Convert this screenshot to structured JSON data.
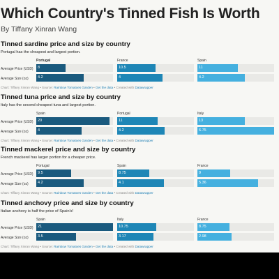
{
  "header": {
    "title": "Which Country's Tinned Fish Is Worth",
    "byline": "By Tiffany Xinran Wang"
  },
  "colors": {
    "dark": "#1a5a7e",
    "mid": "#1e86b6",
    "light": "#45b0df",
    "track": "#e9e9e6",
    "link": "#1f7fb4"
  },
  "footer": {
    "prefix": "Chart: Tiffany Xinran Wang • Source: ",
    "source": "Rainbow Tomatoes Garden",
    "sep1": " • ",
    "data": "Get the data",
    "mid": " • Created with ",
    "tool": "Datawrapper"
  },
  "sections": [
    {
      "title": "Tinned sardine price and size by country",
      "desc": "Portugal has the cheapest and largest portion.",
      "row1": "Average Price (USD)",
      "row2": "Average Size (oz)",
      "cols": [
        {
          "country": "Portugal",
          "price": "8",
          "price_v": 8,
          "size": "4.2",
          "size_v": 4.2,
          "bold": true
        },
        {
          "country": "France",
          "price": "10.5",
          "price_v": 10.5,
          "size": "4",
          "size_v": 4
        },
        {
          "country": "Spain",
          "price": "11",
          "price_v": 11,
          "size": "4.2",
          "size_v": 4.2
        }
      ]
    },
    {
      "title": "Tinned tuna price and size by country",
      "desc": "Italy has the second cheapest tuna and largest portion.",
      "row1": "Average Price (USD)",
      "row2": "Average Size (oz)",
      "cols": [
        {
          "country": "Spain",
          "price": "20",
          "price_v": 20,
          "size": "4",
          "size_v": 4
        },
        {
          "country": "Portugal",
          "price": "11",
          "price_v": 11,
          "size": "4.2",
          "size_v": 4.2
        },
        {
          "country": "Italy",
          "price": "13",
          "price_v": 13,
          "size": "6.75",
          "size_v": 6.75
        }
      ]
    },
    {
      "title": "Tinned mackerel price and size by country",
      "desc": "French mackerel has larger portion for a cheaper price.",
      "row1": "Average Price (USD)",
      "row2": "Average Size (oz)",
      "cols": [
        {
          "country": "Portugal",
          "price": "9.5",
          "price_v": 9.5,
          "size": "4.2",
          "size_v": 4.2
        },
        {
          "country": "Spain",
          "price": "8.75",
          "price_v": 8.75,
          "size": "4.1",
          "size_v": 4.1
        },
        {
          "country": "France",
          "price": "9",
          "price_v": 9,
          "size": "5.36",
          "size_v": 5.36
        }
      ]
    },
    {
      "title": "Tinned anchovy price and size by country",
      "desc": "Italian anchovy is half the price of Spain's!",
      "row1": "Average Price (USD)",
      "row2": "Average Size (oz)",
      "cols": [
        {
          "country": "Spain",
          "price": "21",
          "price_v": 21,
          "size": "3.5",
          "size_v": 3.5
        },
        {
          "country": "Italy",
          "price": "10.75",
          "price_v": 10.75,
          "size": "3.17",
          "size_v": 3.17
        },
        {
          "country": "France",
          "price": "8.75",
          "price_v": 8.75,
          "size": "2.98",
          "size_v": 2.98
        }
      ]
    }
  ]
}
